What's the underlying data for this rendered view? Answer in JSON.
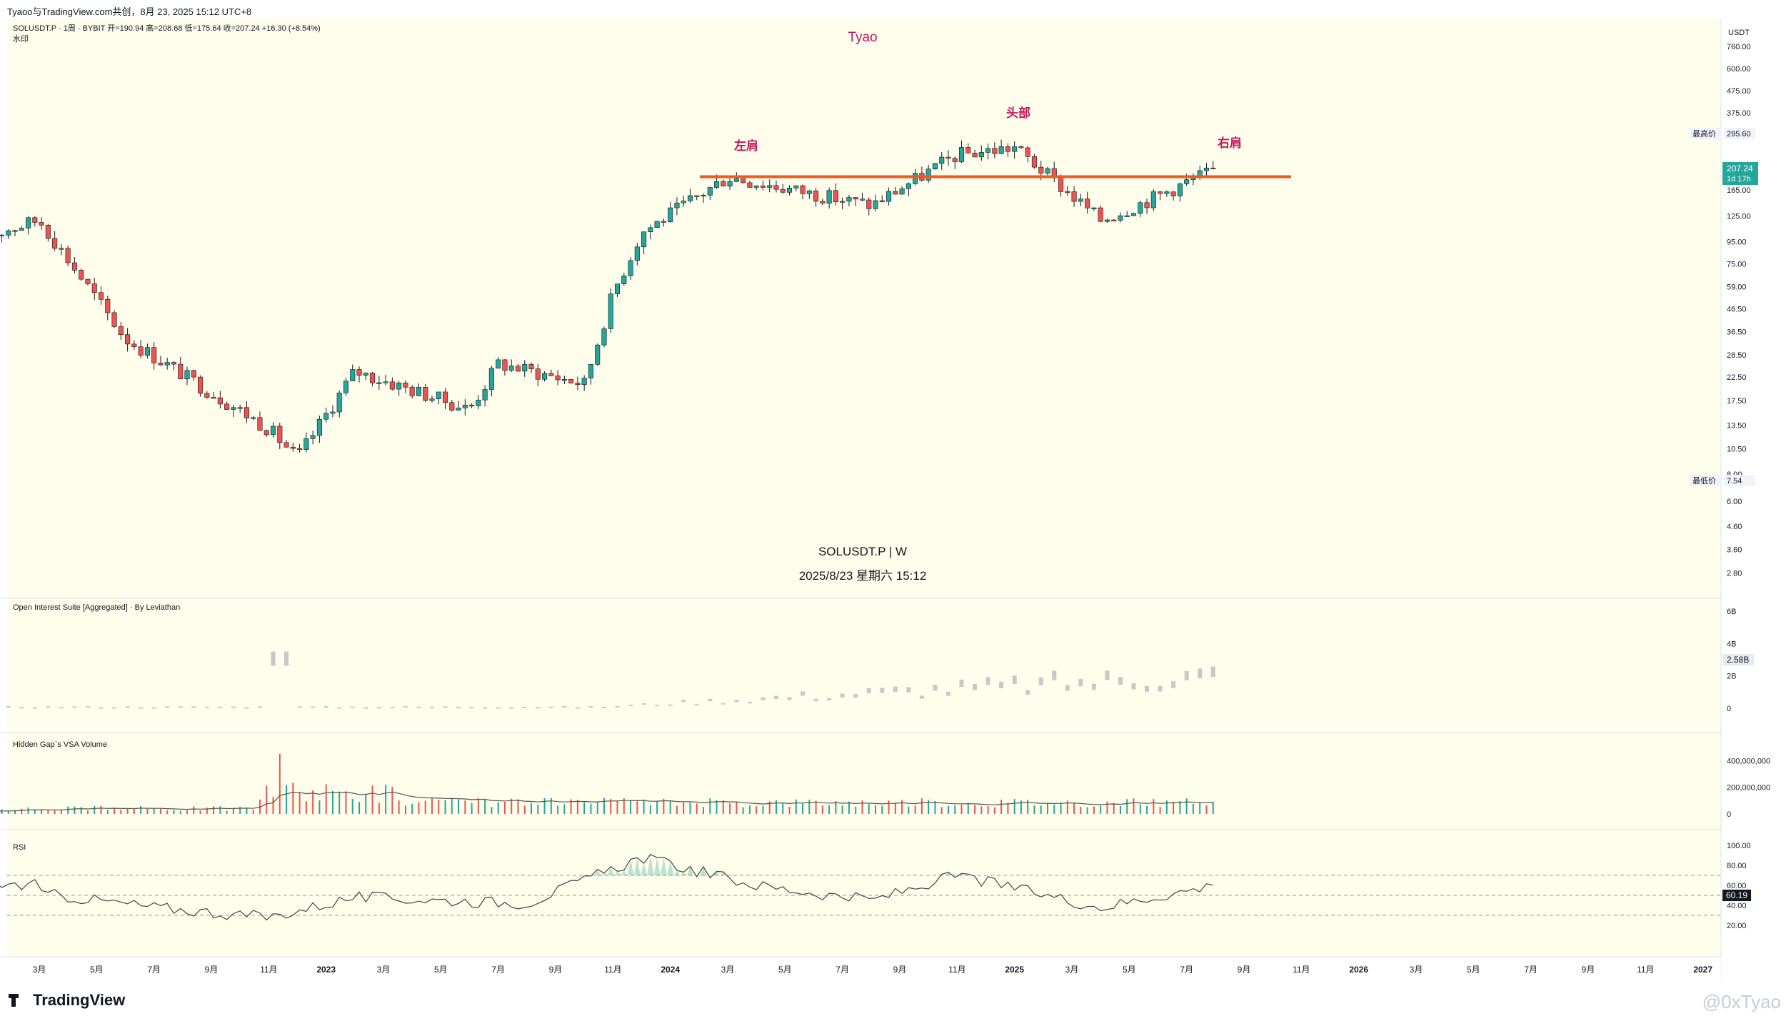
{
  "header": {
    "share_text": "Tyaoo与TradingView.com共创，8月 23, 2025 15:12 UTC+8",
    "symbol_line": "SOLUSDT.P · 1周 · BYBIT  开=190.94  高=208.68  低=175.64  收=207.24  +16.30 (+8.54%)",
    "watermark_label": "水印"
  },
  "annotations": {
    "author": "Tyao",
    "left_shoulder": "左肩",
    "head": "头部",
    "right_shoulder": "右肩",
    "center_symbol": "SOLUSDT.P | W",
    "center_datetime": "2025/8/23 星期六 15:12"
  },
  "price_axis": {
    "currency": "USDT",
    "ticks": [
      "760.00",
      "600.00",
      "475.00",
      "375.00",
      "295.60",
      "165.00",
      "125.00",
      "95.00",
      "75.00",
      "59.00",
      "46.50",
      "36.50",
      "28.50",
      "22.50",
      "17.50",
      "13.50",
      "10.50",
      "8.00",
      "6.00",
      "4.60",
      "3.60",
      "2.80"
    ],
    "high_label": "最高价",
    "high_value": "295.60",
    "low_label": "最低价",
    "low_value": "7.54",
    "current_price": "207.24",
    "countdown": "1d 17h"
  },
  "panes": {
    "oi_title": "Open Interest Suite [Aggregated] · By Leviathan",
    "oi_ticks": [
      "6B",
      "4B",
      "2B",
      "0"
    ],
    "oi_current": "2.58B",
    "vsa_title": "Hidden Gap`s VSA Volume",
    "vsa_ticks": [
      "400,000,000",
      "200,000,000",
      "0"
    ],
    "rsi_title": "RSI",
    "rsi_ticks": [
      "100.00",
      "80.00",
      "60.00",
      "40.00",
      "20.00"
    ],
    "rsi_current": "60.19"
  },
  "time_axis": {
    "labels": [
      "3月",
      "5月",
      "7月",
      "9月",
      "11月",
      "2023",
      "3月",
      "5月",
      "7月",
      "9月",
      "11月",
      "2024",
      "3月",
      "5月",
      "7月",
      "9月",
      "11月",
      "2025",
      "3月",
      "5月",
      "7月",
      "9月",
      "11月",
      "2026",
      "3月",
      "5月",
      "7月",
      "9月",
      "11月",
      "2027"
    ]
  },
  "footer": {
    "logo_text": "TradingView",
    "watermark": "@0xTyao"
  },
  "colors": {
    "background": "#fffdeb",
    "up": "#26a69a",
    "down": "#ef5350",
    "neckline": "#f05a1e",
    "annotation": "#c2185b",
    "price_badge": "#26a69a",
    "oi_bar": "#c8c8c8"
  },
  "chart_data": [
    {
      "type": "candlestick",
      "series": [
        {
          "name": "SOLUSDT.P · 1周 · BYBIT"
        }
      ],
      "x_range": [
        "2022-01",
        "2027-01"
      ],
      "y_scale": "log",
      "ylim": [
        2.5,
        800
      ],
      "key_points": [
        {
          "date": "2022-01",
          "close": 100
        },
        {
          "date": "2022-03",
          "close": 120
        },
        {
          "date": "2022-06",
          "close": 34
        },
        {
          "date": "2022-11",
          "close": 13
        },
        {
          "date": "2022-12",
          "close": 9.5
        },
        {
          "date": "2023-02",
          "close": 24
        },
        {
          "date": "2023-06",
          "close": 16
        },
        {
          "date": "2023-07",
          "close": 26
        },
        {
          "date": "2023-10",
          "close": 21
        },
        {
          "date": "2023-11",
          "close": 55
        },
        {
          "date": "2023-12",
          "close": 105
        },
        {
          "date": "2024-03",
          "close": 190
        },
        {
          "date": "2024-08",
          "close": 140
        },
        {
          "date": "2024-11",
          "close": 240
        },
        {
          "date": "2025-01",
          "close": 260
        },
        {
          "date": "2025-04",
          "close": 120
        },
        {
          "date": "2025-06",
          "close": 155
        },
        {
          "date": "2025-08",
          "close": 207.24
        }
      ],
      "neckline": 190,
      "high": 295.6,
      "low": 7.54
    },
    {
      "type": "bar",
      "series": [
        {
          "name": "Open Interest Suite [Aggregated] · By Leviathan"
        }
      ],
      "ylim": [
        0,
        6000000000
      ],
      "current": 2580000000
    },
    {
      "type": "bar",
      "series": [
        {
          "name": "Hidden Gap`s VSA Volume"
        }
      ],
      "ylim": [
        0,
        450000000
      ],
      "max_spike": 450000000
    },
    {
      "type": "line",
      "series": [
        {
          "name": "RSI"
        }
      ],
      "ylim": [
        0,
        100
      ],
      "bands": [
        30,
        50,
        70
      ],
      "current": 60.19,
      "key_points": [
        {
          "date": "2022-03",
          "value": 52
        },
        {
          "date": "2022-07",
          "value": 38
        },
        {
          "date": "2022-11",
          "value": 28
        },
        {
          "date": "2023-02",
          "value": 48
        },
        {
          "date": "2023-08",
          "value": 42
        },
        {
          "date": "2023-12",
          "value": 88
        },
        {
          "date": "2024-04",
          "value": 60
        },
        {
          "date": "2024-08",
          "value": 45
        },
        {
          "date": "2024-11",
          "value": 70
        },
        {
          "date": "2025-04",
          "value": 38
        },
        {
          "date": "2025-08",
          "value": 60.19
        }
      ]
    }
  ]
}
